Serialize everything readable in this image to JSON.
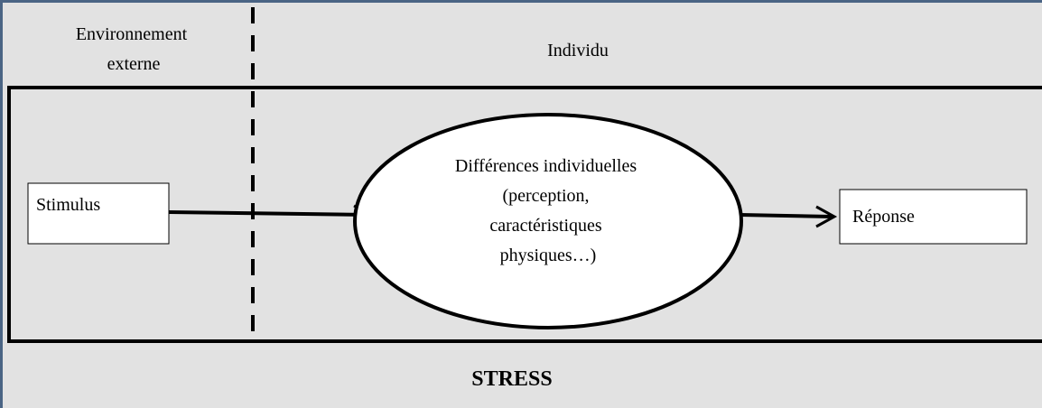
{
  "header": {
    "left": [
      "Environnement",
      "externe"
    ],
    "right": "Individu"
  },
  "nodes": [
    {
      "label": [
        "Stimulus"
      ]
    },
    {
      "label": [
        "Différences individuelles",
        "(perception,",
        "caractéristiques",
        "physiques…)"
      ]
    },
    {
      "label": [
        "Réponse"
      ]
    }
  ],
  "footer": "STRESS"
}
